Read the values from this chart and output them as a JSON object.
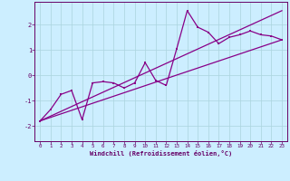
{
  "xlabel": "Windchill (Refroidissement éolien,°C)",
  "bg_color": "#cceeff",
  "line_color": "#880088",
  "grid_color": "#aad4dd",
  "xlim": [
    -0.5,
    23.5
  ],
  "ylim": [
    -2.6,
    2.9
  ],
  "xticks": [
    0,
    1,
    2,
    3,
    4,
    5,
    6,
    7,
    8,
    9,
    10,
    11,
    12,
    13,
    14,
    15,
    16,
    17,
    18,
    19,
    20,
    21,
    22,
    23
  ],
  "yticks": [
    -2,
    -1,
    0,
    1,
    2
  ],
  "data_x": [
    0,
    1,
    2,
    3,
    4,
    5,
    6,
    7,
    8,
    9,
    10,
    11,
    12,
    13,
    14,
    15,
    16,
    17,
    18,
    19,
    20,
    21,
    22,
    23
  ],
  "data_y": [
    -1.8,
    -1.35,
    -0.75,
    -0.6,
    -1.75,
    -0.3,
    -0.25,
    -0.3,
    -0.5,
    -0.3,
    0.5,
    -0.2,
    -0.4,
    1.05,
    2.55,
    1.9,
    1.7,
    1.25,
    1.5,
    1.6,
    1.75,
    1.6,
    1.55,
    1.4
  ],
  "line1_x": [
    0,
    23
  ],
  "line1_y": [
    -1.8,
    2.55
  ],
  "line2_x": [
    0,
    23
  ],
  "line2_y": [
    -1.8,
    1.4
  ]
}
